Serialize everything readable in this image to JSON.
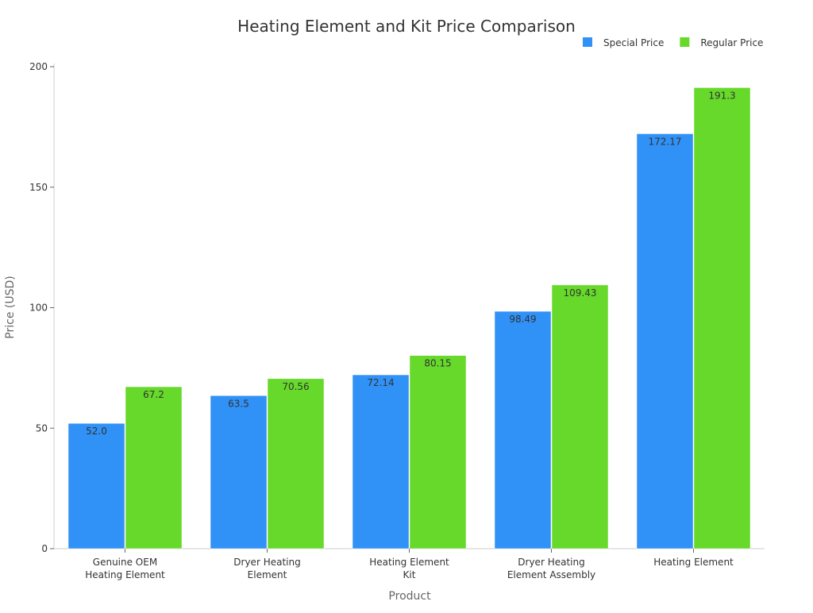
{
  "chart_data": {
    "type": "bar",
    "title": "Heating Element and Kit Price Comparison",
    "xlabel": "Product",
    "ylabel": "Price (USD)",
    "ylim": [
      0,
      200
    ],
    "yticks": [
      0,
      50,
      100,
      150,
      200
    ],
    "grid": false,
    "legend_placement": "top-right",
    "categories": [
      [
        "Genuine OEM",
        "Heating Element"
      ],
      [
        "Dryer Heating",
        "Element"
      ],
      [
        "Heating Element",
        "Kit"
      ],
      [
        "Dryer Heating",
        "Element Assembly"
      ],
      [
        "Heating Element"
      ]
    ],
    "series": [
      {
        "name": "Special Price",
        "color": "#3091f7",
        "values": [
          52.0,
          63.5,
          72.14,
          98.49,
          172.17
        ],
        "labels": [
          "52.0",
          "63.5",
          "72.14",
          "98.49",
          "172.17"
        ]
      },
      {
        "name": "Regular Price",
        "color": "#66d92a",
        "values": [
          67.2,
          70.56,
          80.15,
          109.43,
          191.3
        ],
        "labels": [
          "67.2",
          "70.56",
          "80.15",
          "109.43",
          "191.3"
        ]
      }
    ]
  }
}
